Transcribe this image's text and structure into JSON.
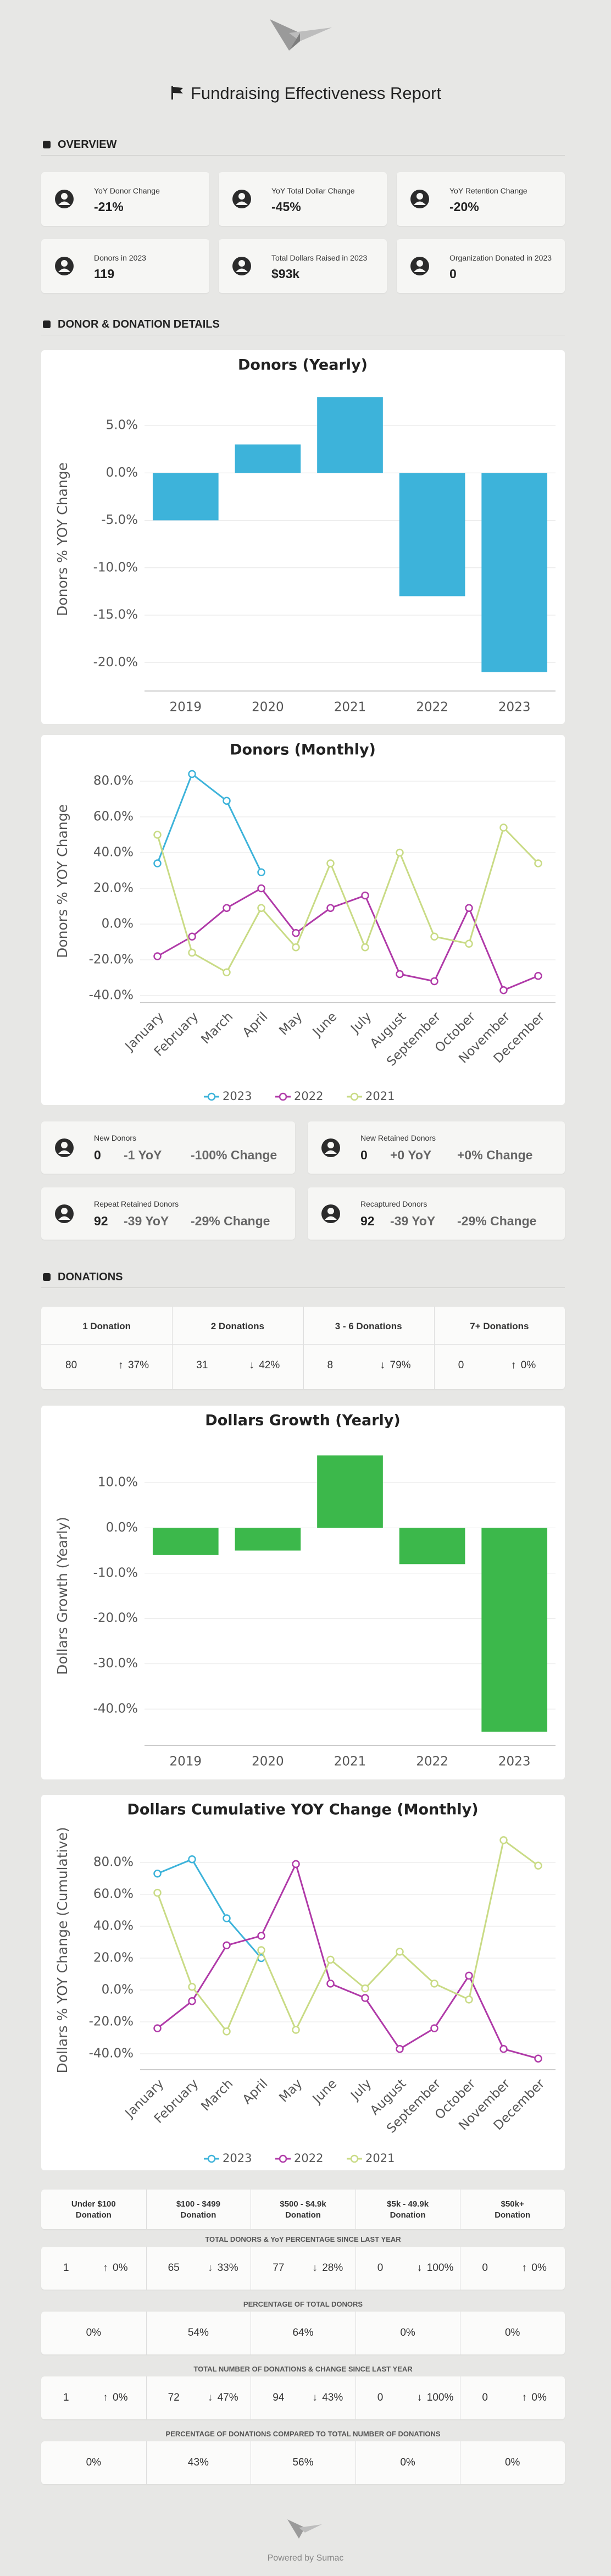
{
  "header": {
    "title": "Fundraising Effectiveness Report"
  },
  "overview": {
    "heading": "OVERVIEW",
    "cards": [
      {
        "label": "YoY Donor Change",
        "value": "-21%"
      },
      {
        "label": "YoY Total Dollar Change",
        "value": "-45%"
      },
      {
        "label": "YoY Retention Change",
        "value": "-20%"
      },
      {
        "label": "Donors in 2023",
        "value": "119"
      },
      {
        "label": "Total Dollars Raised in 2023",
        "value": "$93k"
      },
      {
        "label": "Organization Donated in 2023",
        "value": "0"
      }
    ]
  },
  "details": {
    "heading": "DONOR & DONATION DETAILS",
    "cards": [
      {
        "label": "New Donors",
        "value": "0",
        "yoy": "-1 YoY",
        "change": "-100% Change"
      },
      {
        "label": "New Retained Donors",
        "value": "0",
        "yoy": "+0 YoY",
        "change": "+0% Change"
      },
      {
        "label": "Repeat Retained Donors",
        "value": "92",
        "yoy": "-39 YoY",
        "change": "-29% Change"
      },
      {
        "label": "Recaptured Donors",
        "value": "92",
        "yoy": "-39 YoY",
        "change": "-29% Change"
      }
    ]
  },
  "donations": {
    "heading": "DONATIONS",
    "columns": [
      {
        "label": "1 Donation",
        "count": "80",
        "arrow": "↑",
        "change": "37%"
      },
      {
        "label": "2 Donations",
        "count": "31",
        "arrow": "↓",
        "change": "42%"
      },
      {
        "label": "3 - 6 Donations",
        "count": "8",
        "arrow": "↓",
        "change": "79%"
      },
      {
        "label": "7+ Donations",
        "count": "0",
        "arrow": "↑",
        "change": "0%"
      }
    ]
  },
  "size_table": {
    "headers": [
      [
        "Under $100",
        "Donation"
      ],
      [
        "$100 - $499",
        "Donation"
      ],
      [
        "$500 - $4.9k",
        "Donation"
      ],
      [
        "$5k - 49.9k",
        "Donation"
      ],
      [
        "$50k+",
        "Donation"
      ]
    ],
    "sections": [
      {
        "label": "TOTAL DONORS & YoY PERCENTAGE SINCE LAST YEAR",
        "cells": [
          {
            "value": "1",
            "arrow": "↑",
            "change": "0%"
          },
          {
            "value": "65",
            "arrow": "↓",
            "change": "33%"
          },
          {
            "value": "77",
            "arrow": "↓",
            "change": "28%"
          },
          {
            "value": "0",
            "arrow": "↓",
            "change": "100%"
          },
          {
            "value": "0",
            "arrow": "↑",
            "change": "0%"
          }
        ]
      },
      {
        "label": "PERCENTAGE OF TOTAL DONORS",
        "cells": [
          {
            "value": "0%"
          },
          {
            "value": "54%"
          },
          {
            "value": "64%"
          },
          {
            "value": "0%"
          },
          {
            "value": "0%"
          }
        ]
      },
      {
        "label": "TOTAL NUMBER OF DONATIONS & CHANGE SINCE LAST YEAR",
        "cells": [
          {
            "value": "1",
            "arrow": "↑",
            "change": "0%"
          },
          {
            "value": "72",
            "arrow": "↓",
            "change": "47%"
          },
          {
            "value": "94",
            "arrow": "↓",
            "change": "43%"
          },
          {
            "value": "0",
            "arrow": "↓",
            "change": "100%"
          },
          {
            "value": "0",
            "arrow": "↑",
            "change": "0%"
          }
        ]
      },
      {
        "label": "PERCENTAGE OF DONATIONS COMPARED TO TOTAL NUMBER OF DONATIONS",
        "cells": [
          {
            "value": "0%"
          },
          {
            "value": "43%"
          },
          {
            "value": "56%"
          },
          {
            "value": "0%"
          },
          {
            "value": "0%"
          }
        ]
      }
    ]
  },
  "chart_data": [
    {
      "type": "bar",
      "title": "Donors (Yearly)",
      "y_label": "Donors % YOY Change",
      "color": "#3db3da",
      "grid": true,
      "categories": [
        "2019",
        "2020",
        "2021",
        "2022",
        "2023"
      ],
      "values": [
        -5,
        3,
        8,
        -13,
        -21
      ],
      "ylim": [
        -23,
        9
      ],
      "yticks": [
        {
          "value": 5,
          "label": "5.0%"
        },
        {
          "value": 0,
          "label": "0.0%"
        },
        {
          "value": -5,
          "label": "-5.0%"
        },
        {
          "value": -10,
          "label": "-10.0%"
        },
        {
          "value": -15,
          "label": "-15.0%"
        },
        {
          "value": -20,
          "label": "-20.0%"
        }
      ]
    },
    {
      "type": "line",
      "title": "Donors (Monthly)",
      "y_label": "Donors % YOY Change",
      "grid": true,
      "categories": [
        "January",
        "February",
        "March",
        "April",
        "May",
        "June",
        "July",
        "August",
        "September",
        "October",
        "November",
        "December"
      ],
      "series": [
        {
          "name": "2023",
          "color": "#3db3da",
          "values": [
            34,
            84,
            69,
            29,
            null,
            null,
            null,
            null,
            null,
            null,
            null,
            null
          ]
        },
        {
          "name": "2022",
          "color": "#b03aa8",
          "values": [
            -18,
            -7,
            9,
            20,
            -5,
            9,
            16,
            -28,
            -32,
            9,
            -37,
            -29
          ]
        },
        {
          "name": "2021",
          "color": "#c9db85",
          "values": [
            50,
            -16,
            -27,
            9,
            -13,
            34,
            -13,
            40,
            -7,
            -11,
            54,
            34
          ]
        }
      ],
      "ylim": [
        -44,
        92
      ],
      "yticks": [
        {
          "value": 80,
          "label": "80.0%"
        },
        {
          "value": 60,
          "label": "60.0%"
        },
        {
          "value": 40,
          "label": "40.0%"
        },
        {
          "value": 20,
          "label": "20.0%"
        },
        {
          "value": 0,
          "label": "0.0%"
        },
        {
          "value": -20,
          "label": "-20.0%"
        },
        {
          "value": -40,
          "label": "-40.0%"
        }
      ]
    },
    {
      "type": "bar",
      "title": "Dollars Growth (Yearly)",
      "y_label": "Dollars Growth (Yearly)",
      "color": "#3cb84b",
      "grid": true,
      "categories": [
        "2019",
        "2020",
        "2021",
        "2022",
        "2023"
      ],
      "values": [
        -6,
        -5,
        16,
        -8,
        -45
      ],
      "ylim": [
        -48,
        18
      ],
      "yticks": [
        {
          "value": 10,
          "label": "10.0%"
        },
        {
          "value": 0,
          "label": "0.0%"
        },
        {
          "value": -10,
          "label": "-10.0%"
        },
        {
          "value": -20,
          "label": "-20.0%"
        },
        {
          "value": -30,
          "label": "-30.0%"
        },
        {
          "value": -40,
          "label": "-40.0%"
        }
      ]
    },
    {
      "type": "line",
      "title": "Dollars Cumulative YOY Change (Monthly)",
      "y_label": "Dollars % YOY Change (Cumulative)",
      "grid": true,
      "categories": [
        "January",
        "February",
        "March",
        "April",
        "May",
        "June",
        "July",
        "August",
        "September",
        "October",
        "November",
        "December"
      ],
      "series": [
        {
          "name": "2023",
          "color": "#3db3da",
          "values": [
            73,
            82,
            45,
            20,
            null,
            null,
            null,
            null,
            null,
            null,
            null,
            null
          ]
        },
        {
          "name": "2022",
          "color": "#b03aa8",
          "values": [
            -24,
            -7,
            28,
            34,
            79,
            4,
            -5,
            -37,
            -24,
            9,
            -37,
            -43
          ]
        },
        {
          "name": "2021",
          "color": "#c9db85",
          "values": [
            61,
            2,
            -26,
            25,
            -25,
            19,
            1,
            24,
            4,
            -6,
            94,
            78
          ]
        }
      ],
      "ylim": [
        -50,
        100
      ],
      "yticks": [
        {
          "value": 80,
          "label": "80.0%"
        },
        {
          "value": 60,
          "label": "60.0%"
        },
        {
          "value": 40,
          "label": "40.0%"
        },
        {
          "value": 20,
          "label": "20.0%"
        },
        {
          "value": 0,
          "label": "0.0%"
        },
        {
          "value": -20,
          "label": "-20.0%"
        },
        {
          "value": -40,
          "label": "-40.0%"
        }
      ]
    }
  ],
  "footer": {
    "text": "Powered by Sumac"
  }
}
